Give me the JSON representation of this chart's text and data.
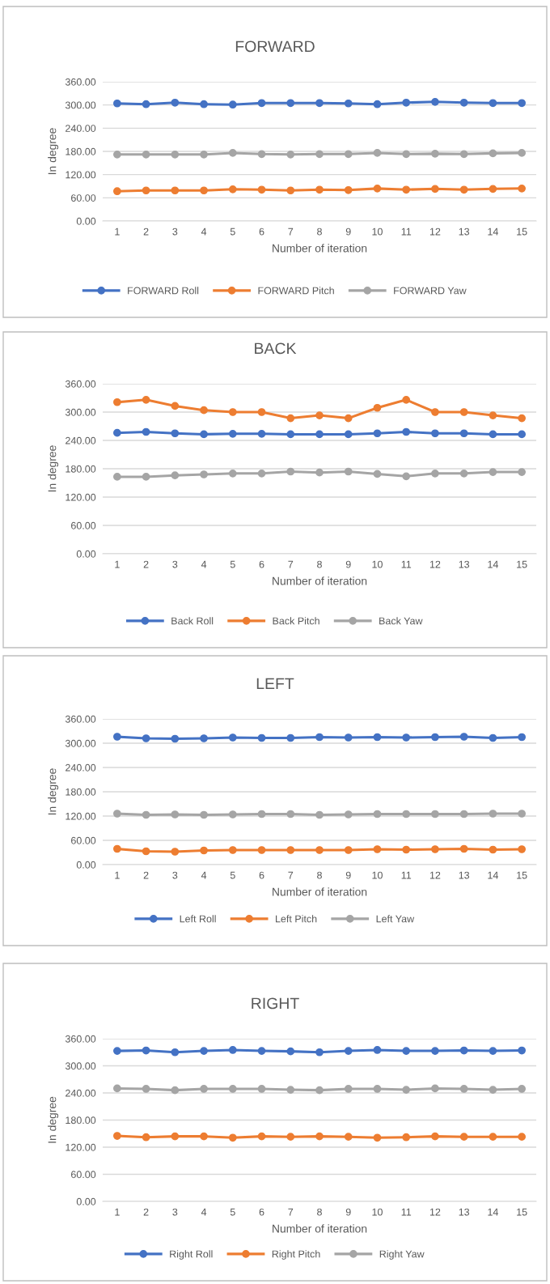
{
  "chart_data": [
    {
      "type": "line",
      "title": "FORWARD",
      "xlabel": "Number of iteration",
      "ylabel": "In degree",
      "categories": [
        "1",
        "2",
        "3",
        "4",
        "5",
        "6",
        "7",
        "8",
        "9",
        "10",
        "11",
        "12",
        "13",
        "14",
        "15"
      ],
      "ylim": [
        0,
        360
      ],
      "yticks": [
        {
          "value": 0,
          "label": "0.00"
        },
        {
          "value": 60,
          "label": "60.00"
        },
        {
          "value": 120,
          "label": "120.00"
        },
        {
          "value": 180,
          "label": "180.00"
        },
        {
          "value": 240,
          "label": "240.00"
        },
        {
          "value": 300,
          "label": "300.00"
        },
        {
          "value": 360,
          "label": "360.00"
        }
      ],
      "grid": "y",
      "legend": "bottom",
      "marker": "circle",
      "line_style": "solid",
      "series": [
        {
          "name": "FORWARD Roll",
          "color": "#4472c4",
          "values": [
            304,
            302,
            306,
            302,
            301,
            305,
            305,
            305,
            304,
            302,
            306,
            308,
            306,
            305,
            305
          ]
        },
        {
          "name": "FORWARD Pitch",
          "color": "#ed7d31",
          "values": [
            77,
            79,
            79,
            79,
            82,
            81,
            79,
            81,
            80,
            84,
            81,
            83,
            81,
            83,
            84
          ]
        },
        {
          "name": "FORWARD Yaw",
          "color": "#a5a5a5",
          "values": [
            172,
            172,
            172,
            172,
            176,
            173,
            172,
            173,
            173,
            176,
            173,
            174,
            173,
            175,
            176
          ]
        }
      ]
    },
    {
      "type": "line",
      "title": "BACK",
      "xlabel": "Number of iteration",
      "ylabel": "In degree",
      "categories": [
        "1",
        "2",
        "3",
        "4",
        "5",
        "6",
        "7",
        "8",
        "9",
        "10",
        "11",
        "12",
        "13",
        "14",
        "15"
      ],
      "ylim": [
        0,
        360
      ],
      "yticks": [
        {
          "value": 0,
          "label": "0.00"
        },
        {
          "value": 60,
          "label": "60.00"
        },
        {
          "value": 120,
          "label": "120.00"
        },
        {
          "value": 180,
          "label": "180.00"
        },
        {
          "value": 240,
          "label": "240.00"
        },
        {
          "value": 300,
          "label": "300.00"
        },
        {
          "value": 360,
          "label": "360.00"
        }
      ],
      "grid": "y",
      "legend": "bottom",
      "marker": "circle",
      "line_style": "solid",
      "series": [
        {
          "name": "Back Roll",
          "color": "#4472c4",
          "values": [
            256,
            258,
            255,
            253,
            254,
            254,
            253,
            253,
            253,
            255,
            258,
            255,
            255,
            253,
            253
          ]
        },
        {
          "name": "Back Pitch",
          "color": "#ed7d31",
          "values": [
            321,
            326,
            313,
            304,
            300,
            300,
            287,
            293,
            287,
            309,
            326,
            300,
            300,
            293,
            287
          ]
        },
        {
          "name": "Back Yaw",
          "color": "#a5a5a5",
          "values": [
            163,
            163,
            166,
            168,
            170,
            170,
            174,
            172,
            174,
            169,
            164,
            170,
            170,
            173,
            173
          ]
        }
      ]
    },
    {
      "type": "line",
      "title": "LEFT",
      "xlabel": "Number of iteration",
      "ylabel": "In degree",
      "categories": [
        "1",
        "2",
        "3",
        "4",
        "5",
        "6",
        "7",
        "8",
        "9",
        "10",
        "11",
        "12",
        "13",
        "14",
        "15"
      ],
      "ylim": [
        0,
        360
      ],
      "yticks": [
        {
          "value": 0,
          "label": "0.00"
        },
        {
          "value": 60,
          "label": "60.00"
        },
        {
          "value": 120,
          "label": "120.00"
        },
        {
          "value": 180,
          "label": "180.00"
        },
        {
          "value": 240,
          "label": "240.00"
        },
        {
          "value": 300,
          "label": "300.00"
        },
        {
          "value": 360,
          "label": "360.00"
        }
      ],
      "grid": "y",
      "legend": "bottom",
      "marker": "circle",
      "line_style": "solid",
      "series": [
        {
          "name": "Left Roll",
          "color": "#4472c4",
          "values": [
            316,
            312,
            311,
            312,
            314,
            313,
            313,
            315,
            314,
            315,
            314,
            315,
            316,
            313,
            315
          ]
        },
        {
          "name": "Left Pitch",
          "color": "#ed7d31",
          "values": [
            39,
            33,
            32,
            35,
            36,
            36,
            36,
            36,
            36,
            38,
            37,
            38,
            39,
            37,
            38
          ]
        },
        {
          "name": "Left Yaw",
          "color": "#a5a5a5",
          "values": [
            126,
            123,
            124,
            123,
            124,
            125,
            125,
            123,
            124,
            125,
            125,
            125,
            125,
            126,
            126
          ]
        }
      ]
    },
    {
      "type": "line",
      "title": "RIGHT",
      "xlabel": "Number of iteration",
      "ylabel": "In degree",
      "categories": [
        "1",
        "2",
        "3",
        "4",
        "5",
        "6",
        "7",
        "8",
        "9",
        "10",
        "11",
        "12",
        "13",
        "14",
        "15"
      ],
      "ylim": [
        0,
        360
      ],
      "yticks": [
        {
          "value": 0,
          "label": "0.00"
        },
        {
          "value": 60,
          "label": "60.00"
        },
        {
          "value": 120,
          "label": "120.00"
        },
        {
          "value": 180,
          "label": "180.00"
        },
        {
          "value": 240,
          "label": "240.00"
        },
        {
          "value": 300,
          "label": "300.00"
        },
        {
          "value": 360,
          "label": "360.00"
        }
      ],
      "grid": "y",
      "legend": "bottom",
      "marker": "circle",
      "line_style": "solid",
      "series": [
        {
          "name": "Right Roll",
          "color": "#4472c4",
          "values": [
            333,
            334,
            330,
            333,
            335,
            333,
            332,
            330,
            333,
            335,
            333,
            333,
            334,
            333,
            334
          ]
        },
        {
          "name": "Right Pitch",
          "color": "#ed7d31",
          "values": [
            145,
            142,
            144,
            144,
            141,
            144,
            143,
            144,
            143,
            141,
            142,
            144,
            143,
            143,
            143
          ]
        },
        {
          "name": "Right Yaw",
          "color": "#a5a5a5",
          "values": [
            250,
            249,
            246,
            249,
            249,
            249,
            247,
            246,
            249,
            249,
            247,
            250,
            249,
            247,
            249
          ]
        }
      ]
    }
  ]
}
